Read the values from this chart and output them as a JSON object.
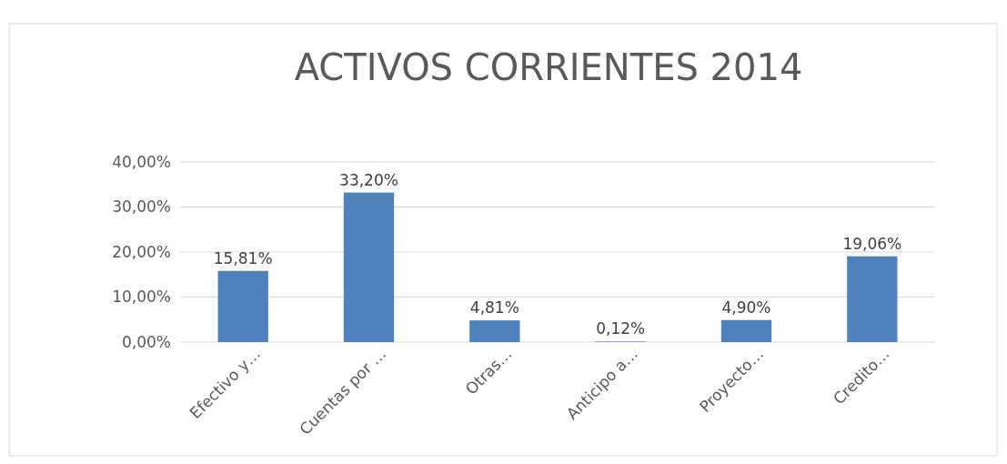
{
  "chart_data": {
    "type": "bar",
    "title": "ACTIVOS CORRIENTES 2014",
    "categories": [
      "Efectivo y…",
      "Cuentas por …",
      "Otras…",
      "Anticipo a…",
      "Proyecto…",
      "Credito…"
    ],
    "values": [
      15.81,
      33.2,
      4.81,
      0.12,
      4.9,
      19.06
    ],
    "value_labels": [
      "15,81%",
      "33,20%",
      "4,81%",
      "0,12%",
      "4,90%",
      "19,06%"
    ],
    "color": "#4f81bd",
    "ylim": [
      0,
      40
    ],
    "yticks": [
      {
        "value": 0,
        "label": "0,00%"
      },
      {
        "value": 10,
        "label": "10,00%"
      },
      {
        "value": 20,
        "label": "20,00%"
      },
      {
        "value": 30,
        "label": "30,00%"
      },
      {
        "value": 40,
        "label": "40,00%"
      }
    ],
    "grid": "y"
  }
}
